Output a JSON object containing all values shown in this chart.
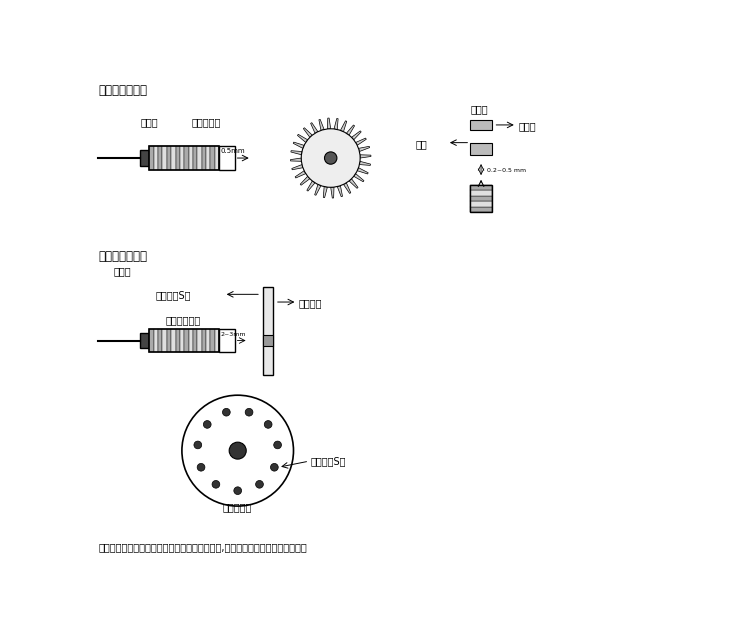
{
  "title1": "检测齿轮转速：",
  "title2": "检测齿盘转速：",
  "label_side1": "侧面图",
  "label_front": "正面图",
  "label_gear_sensor": "齿轮传感器",
  "label_side2": "侧面图",
  "label_mag_sensor": "磁感应传感器",
  "label_detect_mag": "检测磁钢S极",
  "label_rotate_disk": "转动圆盘",
  "label_detect_disk": "检测盘正面",
  "label_detect_tooth": "检测齿",
  "label_tooth_slot": "齿槽",
  "label_gap1": "0.5mm",
  "label_gap2": "0.2~0.5 mm",
  "label_gap3": "2~3mm",
  "footer": "典型应用举例：各种进口、国产整经机、浆沙机,纺织、化纤机械的齿轮高速检测",
  "bg_color": "#ffffff",
  "line_color": "#000000",
  "gray_color": "#888888",
  "light_gray": "#cccccc"
}
